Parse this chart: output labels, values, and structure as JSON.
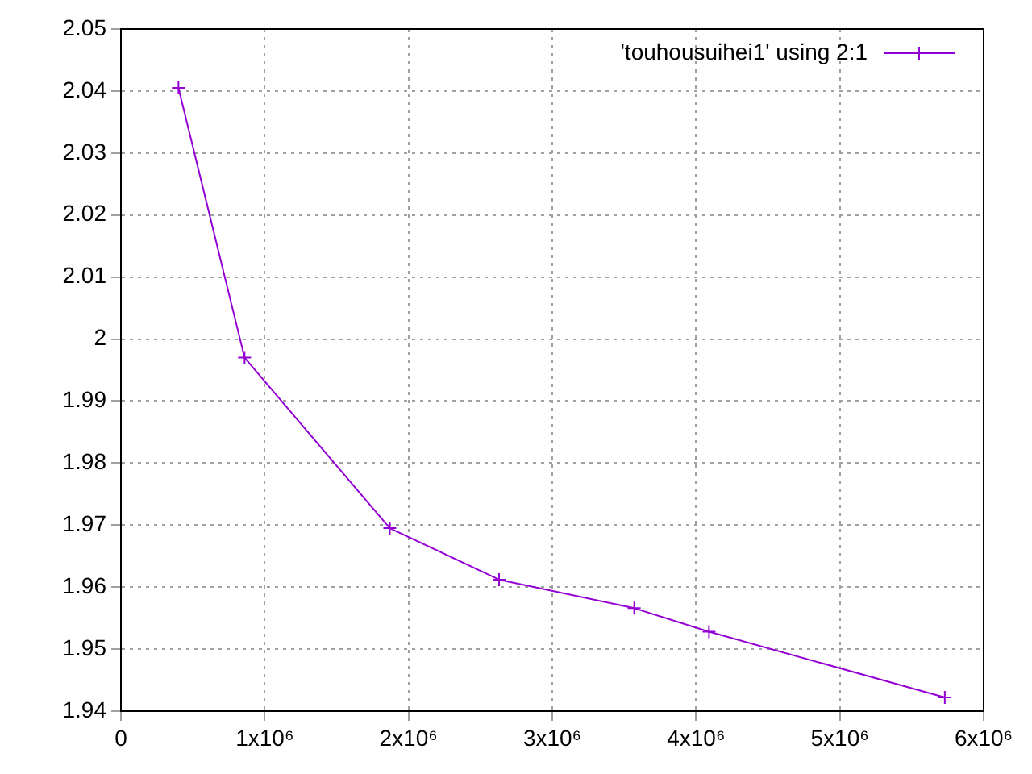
{
  "chart_data": {
    "type": "line",
    "x": [
      400000,
      860000,
      1870000,
      2630000,
      3570000,
      4090000,
      5730000
    ],
    "series": [
      {
        "name": "'touhousuihei1' using 2:1",
        "color": "#9400d3",
        "values": [
          2.0405,
          1.997,
          1.9695,
          1.9612,
          1.9566,
          1.9528,
          1.9422
        ]
      }
    ],
    "xlim": [
      0,
      6000000
    ],
    "xticks": [
      0,
      {
        "value": 1000000,
        "label": "1x10⁶"
      },
      {
        "value": 2000000,
        "label": "2x10⁶"
      },
      {
        "value": 3000000,
        "label": "3x10⁶"
      },
      {
        "value": 4000000,
        "label": "4x10⁶"
      },
      {
        "value": 5000000,
        "label": "5x10⁶"
      },
      {
        "value": 6000000,
        "label": "6x10⁶"
      }
    ],
    "ylim": [
      1.94,
      2.05
    ],
    "yticks": [
      1.94,
      1.95,
      1.96,
      1.97,
      1.98,
      1.99,
      2,
      2.01,
      2.02,
      2.03,
      2.04,
      2.05
    ],
    "grid": true,
    "legend": "top right",
    "marker": "cross",
    "line_style": "solid"
  }
}
